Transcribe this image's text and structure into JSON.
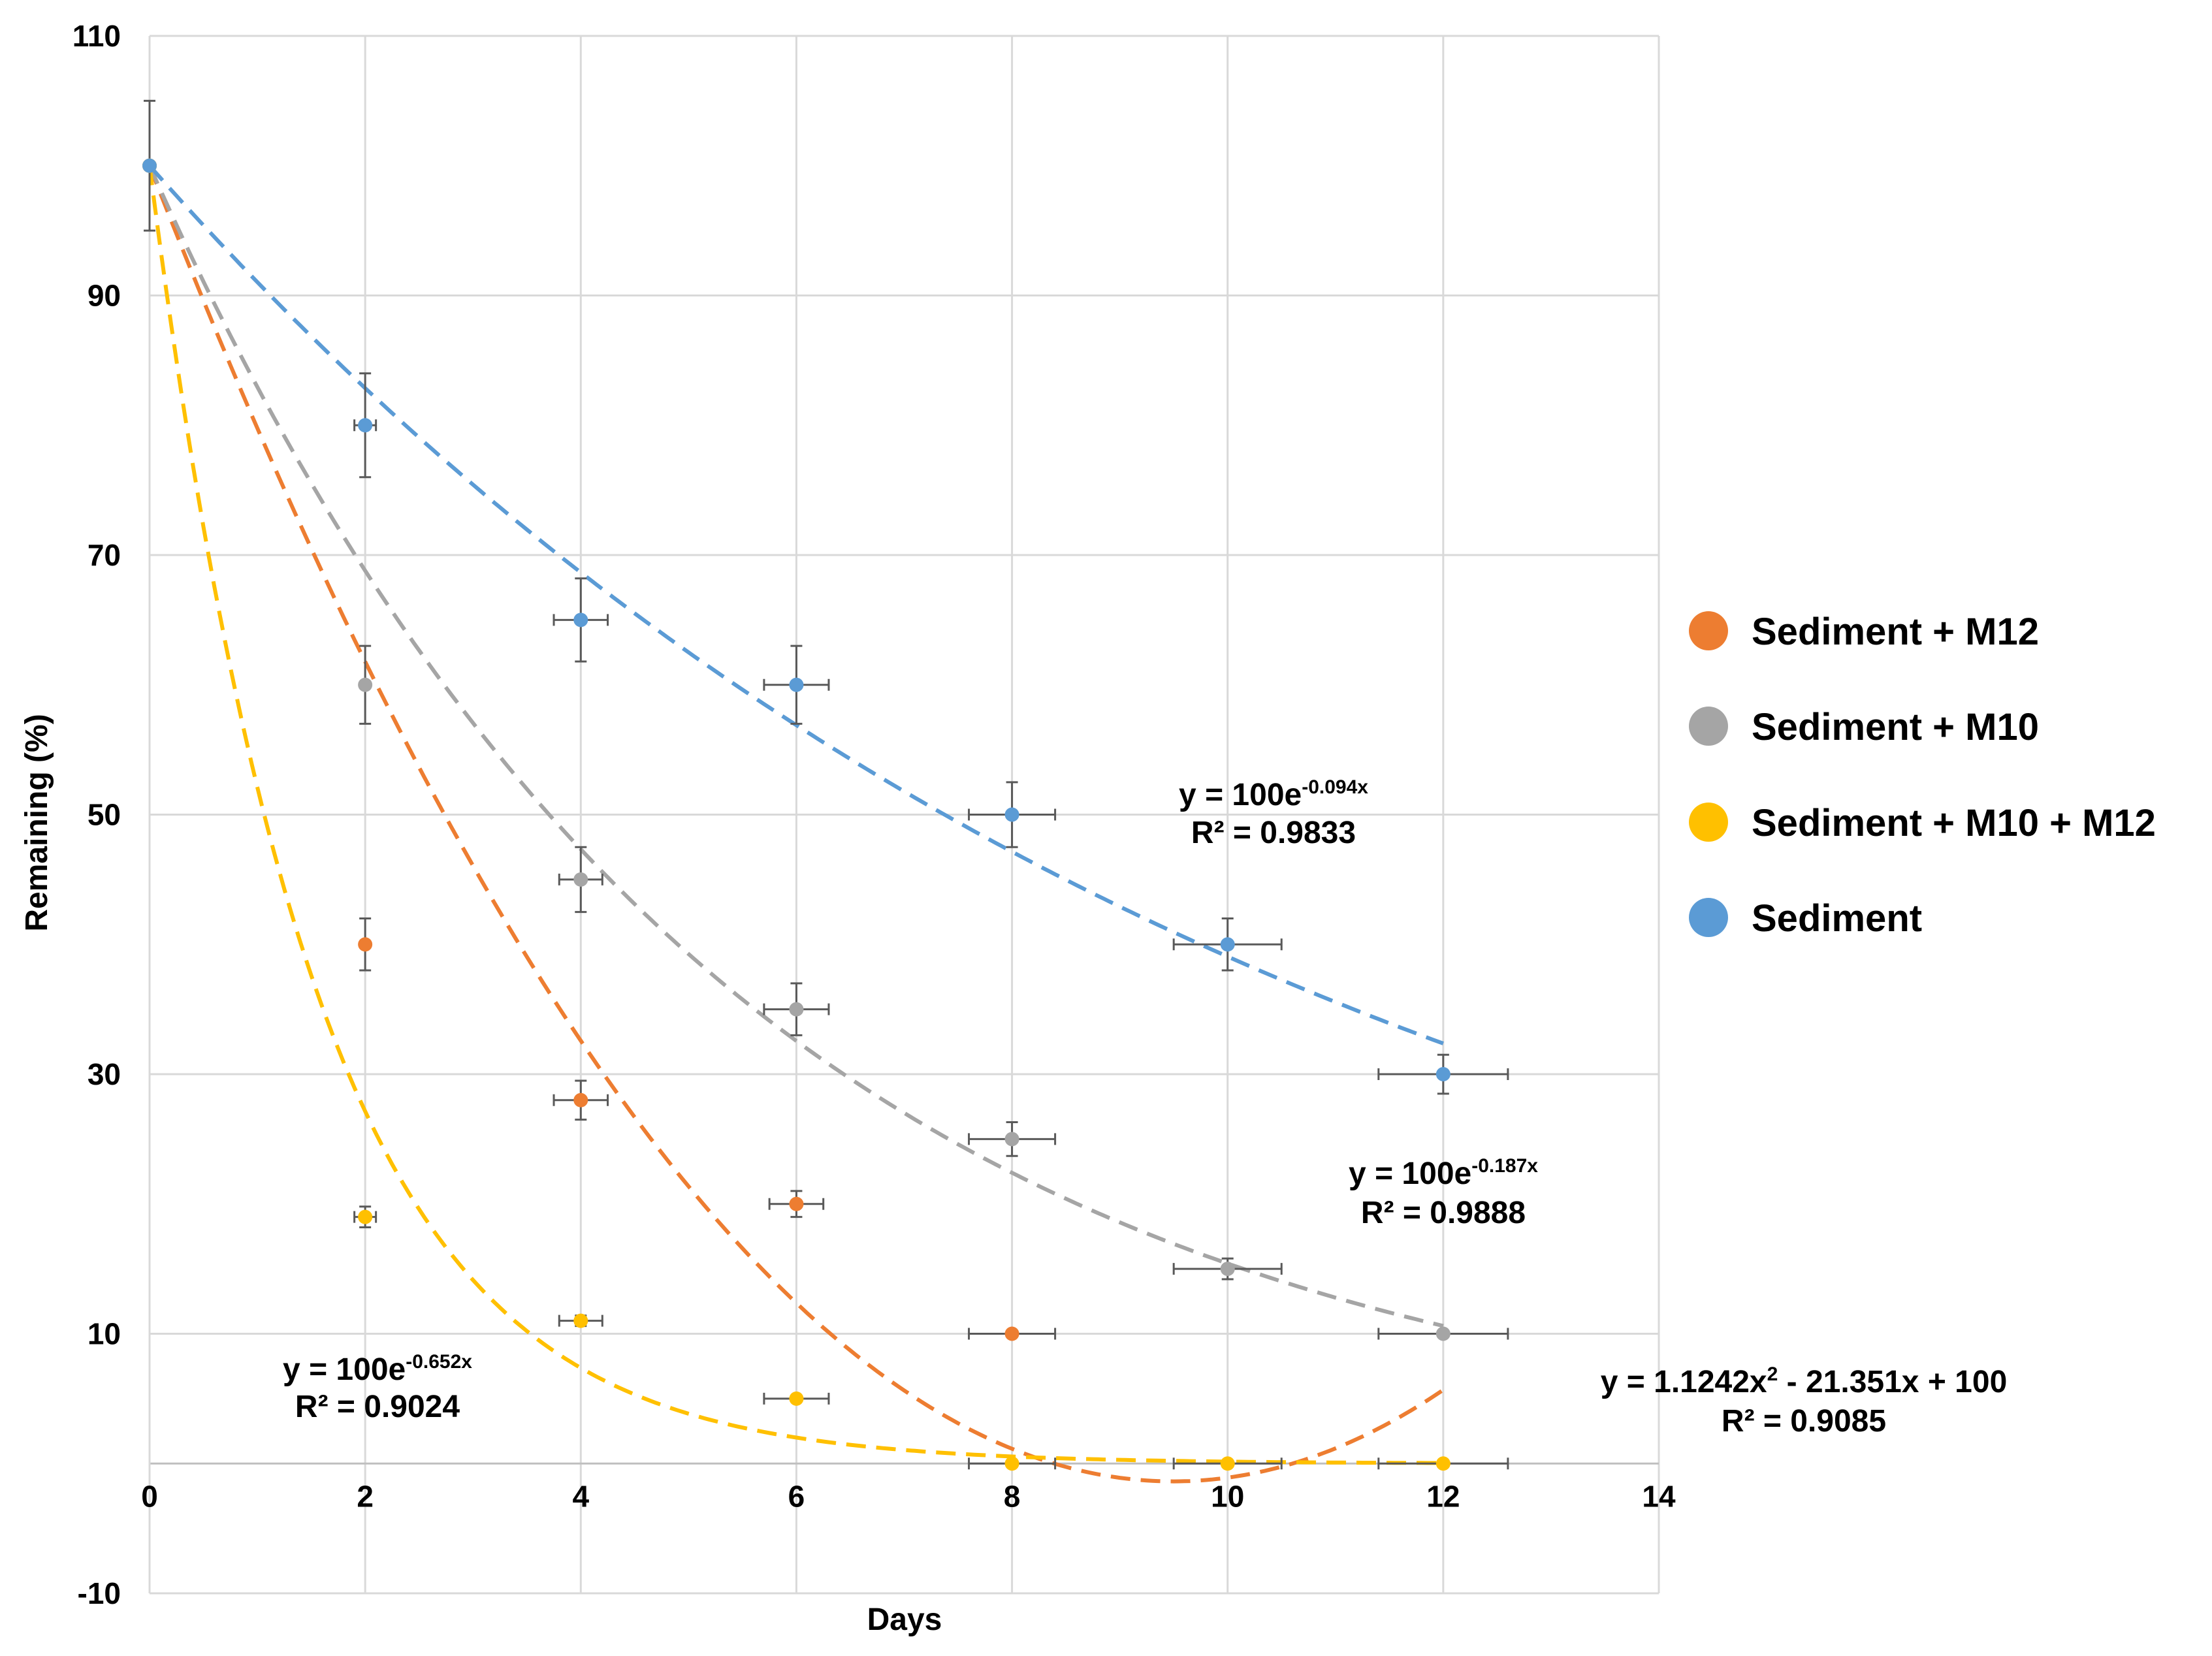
{
  "chart_data": {
    "type": "scatter",
    "title": "",
    "xlabel": "Days",
    "ylabel": "Remaining (%)",
    "xlim": [
      0,
      14
    ],
    "ylim": [
      -10,
      110
    ],
    "x_ticks": [
      "0",
      "2",
      "4",
      "6",
      "8",
      "10",
      "12",
      "14"
    ],
    "y_ticks": [
      "-10",
      "10",
      "30",
      "50",
      "70",
      "90",
      "110"
    ],
    "grid": true,
    "legend_position": "right",
    "series": [
      {
        "name": "Sediment + M12",
        "color": "#ED7D31",
        "x": [
          0,
          2,
          4,
          6,
          8
        ],
        "y": [
          100,
          40,
          28,
          20,
          10
        ],
        "y_err": [
          0,
          2,
          1.5,
          1,
          0
        ],
        "x_err": [
          0,
          0,
          0.25,
          0.25,
          0.4
        ],
        "trendline": {
          "type": "polynomial",
          "a": 1.1242,
          "b": -21.351,
          "c": 100,
          "x_max": 12
        },
        "equation": {
          "base": "y = 1.1242x",
          "sup": "2",
          "rest": " - 21.351x + 100",
          "r2": "R² = 0.9085"
        }
      },
      {
        "name": "Sediment + M10",
        "color": "#A5A5A5",
        "x": [
          0,
          2,
          4,
          6,
          8,
          10,
          12
        ],
        "y": [
          100,
          60,
          45,
          35,
          25,
          15,
          10
        ],
        "y_err": [
          0,
          3,
          2.5,
          2,
          1.3,
          0.8,
          0
        ],
        "x_err": [
          0,
          0,
          0.2,
          0.3,
          0.4,
          0.5,
          0.6
        ],
        "trendline": {
          "type": "exponential",
          "a": 100,
          "k": -0.187,
          "x_max": 12
        },
        "equation": {
          "base": "y = 100e",
          "sup": "-0.187x",
          "rest": "",
          "r2": "R² = 0.9888"
        }
      },
      {
        "name": "Sediment + M10 + M12",
        "color": "#FFC000",
        "x": [
          0,
          2,
          4,
          6,
          8,
          10,
          12
        ],
        "y": [
          100,
          19,
          11,
          5,
          0,
          0,
          0
        ],
        "y_err": [
          0,
          0.8,
          0.4,
          0,
          0,
          0,
          0
        ],
        "x_err": [
          0,
          0.1,
          0.2,
          0.3,
          0.4,
          0.5,
          0.6
        ],
        "trendline": {
          "type": "exponential",
          "a": 100,
          "k": -0.652,
          "x_max": 12
        },
        "equation": {
          "base": "y = 100e",
          "sup": "-0.652x",
          "rest": "",
          "r2": "R² = 0.9024"
        }
      },
      {
        "name": "Sediment",
        "color": "#5B9BD5",
        "x": [
          0,
          2,
          4,
          6,
          8,
          10,
          12
        ],
        "y": [
          100,
          80,
          65,
          60,
          50,
          40,
          30
        ],
        "y_err": [
          5,
          4,
          3.2,
          3,
          2.5,
          2,
          1.5
        ],
        "x_err": [
          0,
          0.1,
          0.25,
          0.3,
          0.4,
          0.5,
          0.6
        ],
        "trendline": {
          "type": "exponential",
          "a": 100,
          "k": -0.094,
          "x_max": 12
        },
        "equation": {
          "base": "y = 100e",
          "sup": "-0.094x",
          "rest": "",
          "r2": "R² = 0.9833"
        }
      }
    ]
  }
}
